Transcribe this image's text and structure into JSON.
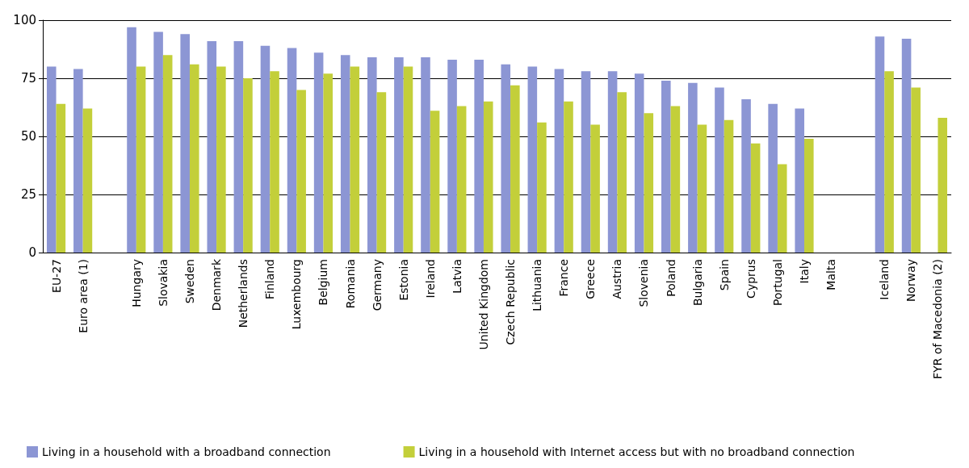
{
  "chart_data": {
    "type": "bar",
    "categories": [
      "EU-27",
      "Euro area (1)",
      null,
      "Hungary",
      "Slovakia",
      "Sweden",
      "Denmark",
      "Netherlands",
      "Finland",
      "Luxembourg",
      "Belgium",
      "Romania",
      "Germany",
      "Estonia",
      "Ireland",
      "Latvia",
      "United Kingdom",
      "Czech Republic",
      "Lithuania",
      "France",
      "Greece",
      "Austria",
      "Slovenia",
      "Poland",
      "Bulgaria",
      "Spain",
      "Cyprus",
      "Portugal",
      "Italy",
      "Malta",
      null,
      "Iceland",
      "Norway",
      "FYR of Macedonia (2)"
    ],
    "series": [
      {
        "name": "Living in a household with a broadband connection",
        "color": "#8c96d4",
        "values": [
          80,
          79,
          null,
          97,
          95,
          94,
          91,
          91,
          89,
          88,
          86,
          85,
          84,
          84,
          84,
          83,
          83,
          81,
          80,
          79,
          78,
          78,
          77,
          74,
          73,
          71,
          66,
          64,
          62,
          null,
          null,
          93,
          92,
          null
        ]
      },
      {
        "name": "Living in a household with Internet access but with no broadband connection",
        "color": "#c3cf3a",
        "values": [
          64,
          62,
          null,
          80,
          85,
          81,
          80,
          75,
          78,
          70,
          77,
          80,
          69,
          80,
          61,
          63,
          65,
          72,
          56,
          65,
          55,
          69,
          60,
          63,
          55,
          57,
          47,
          38,
          49,
          null,
          null,
          78,
          71,
          58
        ]
      }
    ],
    "ylim": [
      0,
      100
    ],
    "yticks": [
      0,
      25,
      50,
      75,
      100
    ],
    "grid": "y",
    "legend": "bottom"
  }
}
